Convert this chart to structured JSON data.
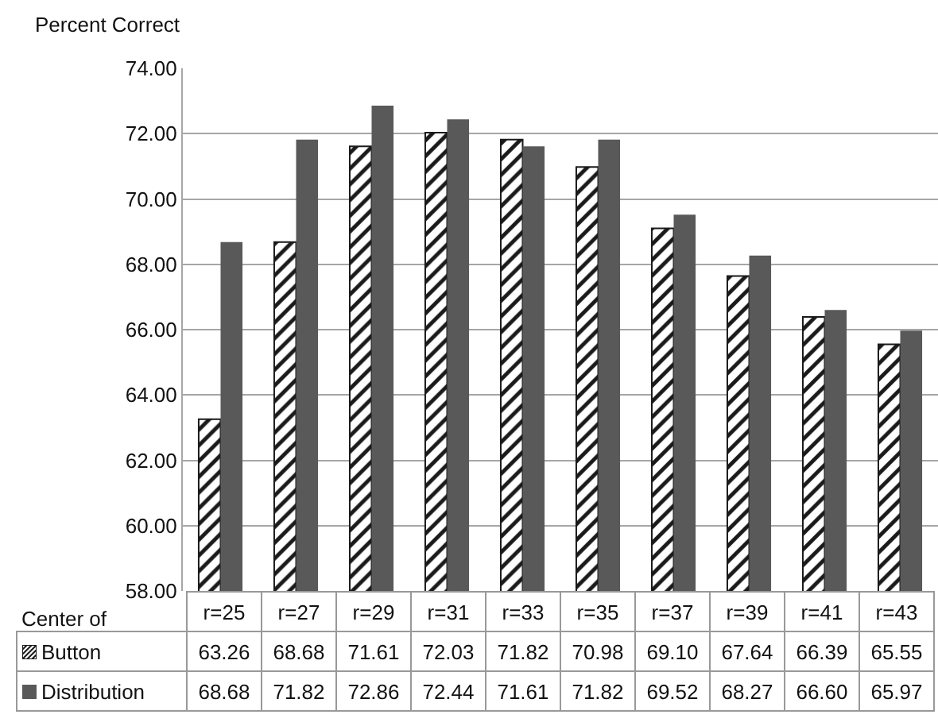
{
  "chart_data": {
    "type": "bar",
    "ylabel": "Percent Correct",
    "xlabel": "Center of",
    "categories": [
      "r=25",
      "r=27",
      "r=29",
      "r=31",
      "r=33",
      "r=35",
      "r=37",
      "r=39",
      "r=41",
      "r=43"
    ],
    "series": [
      {
        "name": "Button",
        "color": "#1a1a1a",
        "values": [
          63.26,
          68.68,
          71.61,
          72.03,
          71.82,
          70.98,
          69.1,
          67.64,
          66.39,
          65.55
        ],
        "value_labels": [
          "63.26",
          "68.68",
          "71.61",
          "72.03",
          "71.82",
          "70.98",
          "69.10",
          "67.64",
          "66.39",
          "65.55"
        ]
      },
      {
        "name": "Distribution",
        "color": "#595959",
        "values": [
          68.68,
          71.82,
          72.86,
          72.44,
          71.61,
          71.82,
          69.52,
          68.27,
          66.6,
          65.97
        ],
        "value_labels": [
          "68.68",
          "71.82",
          "72.86",
          "72.44",
          "71.61",
          "71.82",
          "69.52",
          "68.27",
          "66.60",
          "65.97"
        ]
      }
    ],
    "ylim": [
      58,
      74
    ],
    "yticks": [
      {
        "value": 58,
        "label": "58.00"
      },
      {
        "value": 60,
        "label": "60.00"
      },
      {
        "value": 62,
        "label": "62.00"
      },
      {
        "value": 64,
        "label": "64.00"
      },
      {
        "value": 66,
        "label": "66.00"
      },
      {
        "value": 68,
        "label": "68.00"
      },
      {
        "value": 70,
        "label": "70.00"
      },
      {
        "value": 72,
        "label": "72.00"
      },
      {
        "value": 74,
        "label": "74.00"
      }
    ],
    "grid": "y"
  }
}
